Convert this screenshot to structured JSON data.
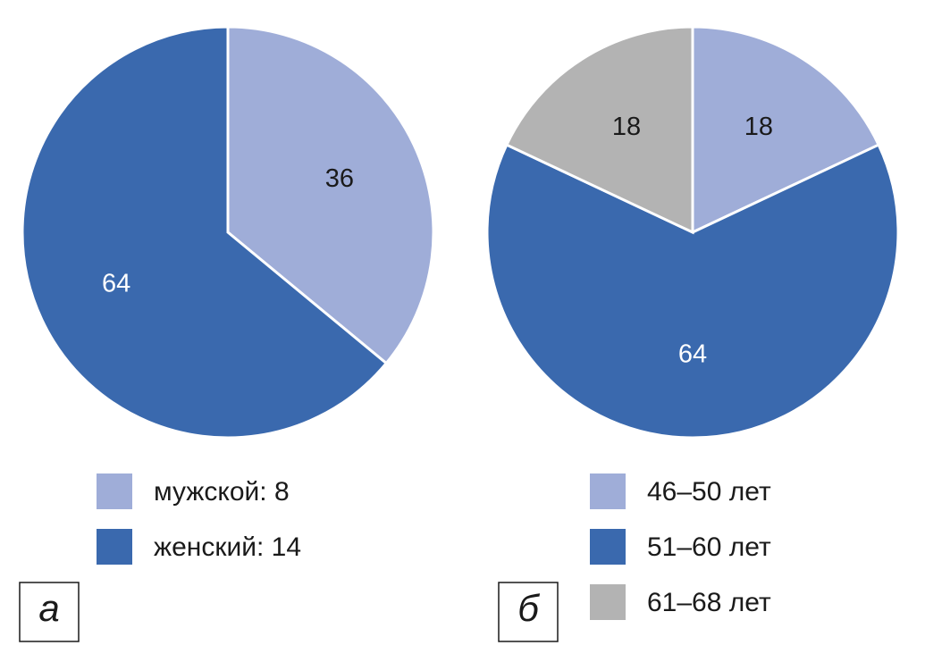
{
  "chart_data": [
    {
      "type": "pie",
      "label": "а",
      "categories": [
        "мужской: 8",
        "женский: 14"
      ],
      "values": [
        36,
        64
      ],
      "colors": [
        "#9fadd8",
        "#3a69ae"
      ]
    },
    {
      "type": "pie",
      "label": "б",
      "categories": [
        "46–50 лет",
        "51–60 лет",
        "61–68 лет"
      ],
      "values": [
        18,
        64,
        18
      ],
      "colors": [
        "#9fadd8",
        "#3a69ae",
        "#b3b3b3"
      ]
    }
  ]
}
